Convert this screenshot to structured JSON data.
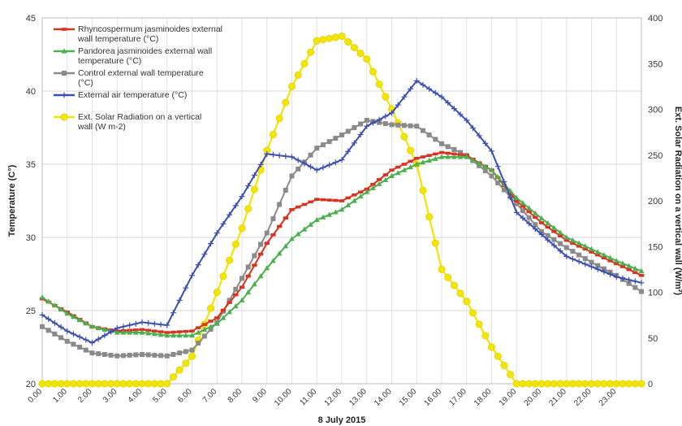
{
  "chart_data": {
    "type": "line",
    "xlabel": "8 July 2015",
    "ylabel": "Temperature (C°)",
    "y2label": "Ext. Solar Radiation on a vertical wall (W/m²)",
    "ylim": [
      20,
      45
    ],
    "y2lim": [
      0,
      400
    ],
    "yticks": [
      "20",
      "25",
      "30",
      "35",
      "40",
      "45"
    ],
    "y2ticks": [
      "0",
      "50",
      "100",
      "150",
      "200",
      "250",
      "300",
      "350",
      "400"
    ],
    "x_tick_labels": [
      "0.00",
      "1.00",
      "2.00",
      "3.00",
      "4.00",
      "5.00",
      "6.00",
      "7.00",
      "8.00",
      "9.00",
      "10.00",
      "11.00",
      "12.00",
      "13.00",
      "14.00",
      "15.00",
      "16.00",
      "17.00",
      "18.00",
      "19.00",
      "20.00",
      "21.00",
      "22.00",
      "23.00"
    ],
    "x": [
      0,
      1,
      2,
      3,
      4,
      5,
      6,
      7,
      8,
      9,
      10,
      11,
      12,
      13,
      14,
      15,
      16,
      17,
      18,
      19,
      20,
      21,
      22,
      23,
      24
    ],
    "grid": true,
    "legend_position": "top-left",
    "series": [
      {
        "name": "Rhyncospermum jasminoides external wall temperature (°C)",
        "color": "#d9321f",
        "marker": "dash",
        "axis": "left",
        "values": [
          25.8,
          24.9,
          23.9,
          23.6,
          23.7,
          23.5,
          23.6,
          24.5,
          26.6,
          29.6,
          31.9,
          32.6,
          32.5,
          33.3,
          34.6,
          35.4,
          35.8,
          35.6,
          34.6,
          32.5,
          31.0,
          29.8,
          29.0,
          28.2,
          27.4
        ]
      },
      {
        "name": "Pandorea jasminoides external wall temperature (°C)",
        "color": "#4caf50",
        "marker": "triangle",
        "axis": "left",
        "values": [
          25.9,
          24.8,
          23.9,
          23.5,
          23.5,
          23.3,
          23.3,
          24.1,
          25.7,
          27.9,
          29.9,
          31.2,
          31.9,
          33.1,
          34.2,
          35.0,
          35.5,
          35.5,
          34.6,
          32.7,
          31.3,
          30.0,
          29.2,
          28.4,
          27.7
        ]
      },
      {
        "name": "Control external wall temperature (°C)",
        "color": "#8a8a8a",
        "marker": "square",
        "axis": "left",
        "values": [
          23.9,
          22.9,
          22.1,
          21.9,
          22.0,
          21.9,
          22.3,
          24.2,
          27.2,
          30.3,
          34.2,
          36.1,
          37.0,
          38.0,
          37.7,
          37.6,
          36.4,
          35.6,
          34.2,
          32.3,
          30.4,
          29.3,
          28.3,
          27.4,
          26.3
        ]
      },
      {
        "name": "External air temperature (°C)",
        "color": "#3a4fb0",
        "marker": "plus",
        "axis": "left",
        "values": [
          24.7,
          23.6,
          22.8,
          23.8,
          24.2,
          24.0,
          27.4,
          30.3,
          32.8,
          35.7,
          35.5,
          34.6,
          35.3,
          37.6,
          38.5,
          40.7,
          39.6,
          38.0,
          35.9,
          31.7,
          30.2,
          28.7,
          28.0,
          27.3,
          26.9
        ]
      },
      {
        "name": "Ext. Solar Radiation on a vertical wall (W m-2)",
        "color": "#f2e600",
        "marker": "circle",
        "axis": "right",
        "values": [
          0,
          0,
          0,
          0,
          0,
          0,
          30,
          100,
          170,
          255,
          325,
          375,
          380,
          355,
          300,
          240,
          125,
          90,
          40,
          0,
          0,
          0,
          0,
          0,
          0
        ]
      }
    ]
  }
}
